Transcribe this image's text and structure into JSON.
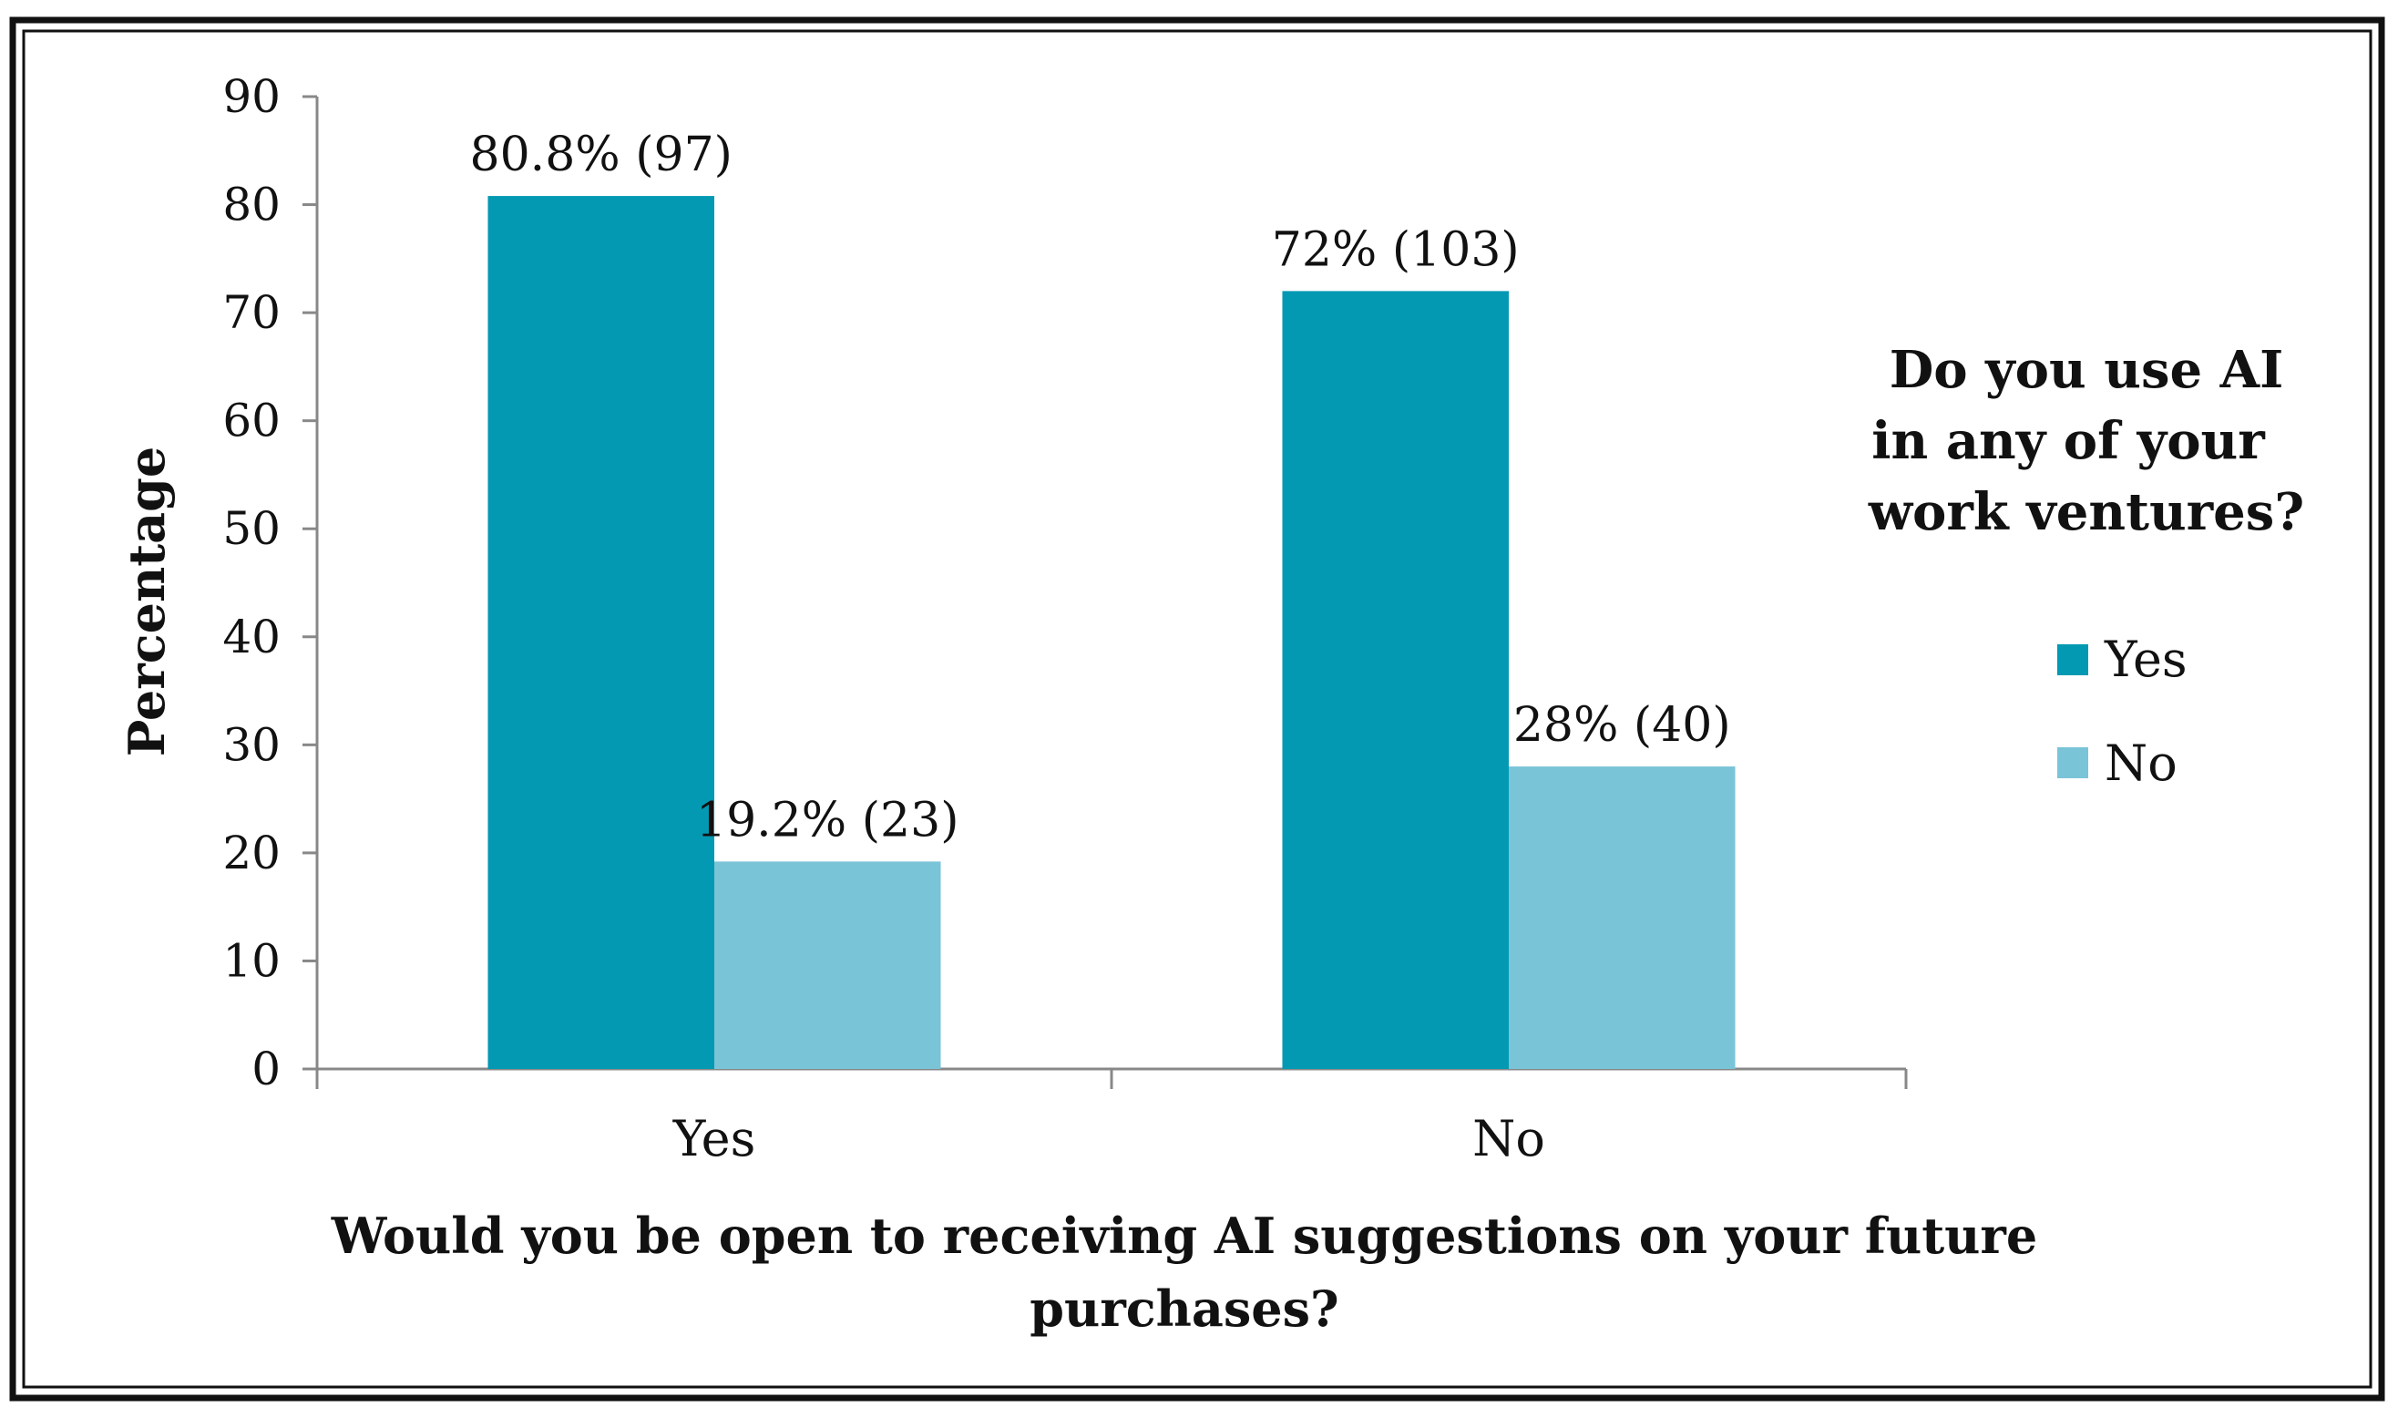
{
  "chart_data": {
    "type": "bar",
    "categories": [
      "Yes",
      "No"
    ],
    "series": [
      {
        "name": "Yes",
        "values": [
          80.8,
          72
        ],
        "labels": [
          "80.8% (97)",
          "72% (103)"
        ],
        "color": "#0399b3"
      },
      {
        "name": "No",
        "values": [
          19.2,
          28
        ],
        "labels": [
          "19.2% (23)",
          "28% (40)"
        ],
        "color": "#7ac4d8"
      }
    ],
    "title": "",
    "xlabel_lines": [
      "Would you be open to receiving AI suggestions on your future",
      "purchases?"
    ],
    "ylabel": "Percentage",
    "ylim": [
      0,
      90
    ],
    "yticks": [
      0,
      10,
      20,
      30,
      40,
      50,
      60,
      70,
      80,
      90
    ],
    "grid": false,
    "legend": {
      "title_lines": [
        "Do you use AI",
        "in any of your",
        "work ventures?"
      ],
      "placement": "right"
    }
  }
}
